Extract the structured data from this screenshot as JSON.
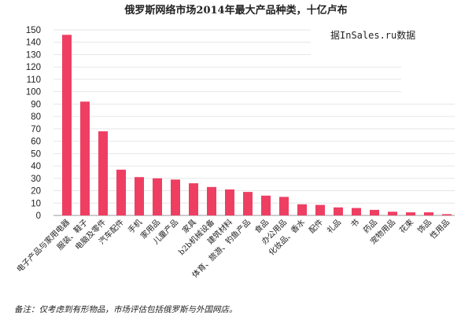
{
  "chart_data": {
    "type": "bar",
    "title": "俄罗斯网络市场2014年最大产品种类，十亿卢布",
    "source": "据InSales.ru数据",
    "note": "备注：仅考虑到有形物品，市场评估包括俄罗斯与外国网店。",
    "xlabel": "",
    "ylabel": "",
    "ylim": [
      0,
      150
    ],
    "yticks": [
      0,
      10,
      20,
      30,
      40,
      50,
      60,
      70,
      80,
      90,
      100,
      110,
      120,
      130,
      140,
      150
    ],
    "bar_color": "#ee3f63",
    "categories": [
      "电子产品与家用电器",
      "服装、鞋子",
      "电脑及零件",
      "汽车配件",
      "手机",
      "家用品",
      "儿童产品",
      "家具",
      "b2b机械设备",
      "建筑材料",
      "体育、旅游、钓鱼产品",
      "食品",
      "办公用品",
      "化妆品、香水",
      "配件",
      "礼品",
      "书",
      "药品",
      "宠物用品",
      "花束",
      "饰品",
      "性用品"
    ],
    "values": [
      146,
      92,
      68,
      37,
      31,
      30,
      29,
      26,
      23,
      21,
      19,
      16,
      15,
      9,
      8.5,
      6.5,
      6,
      4.5,
      3,
      2.5,
      2.5,
      1
    ]
  }
}
